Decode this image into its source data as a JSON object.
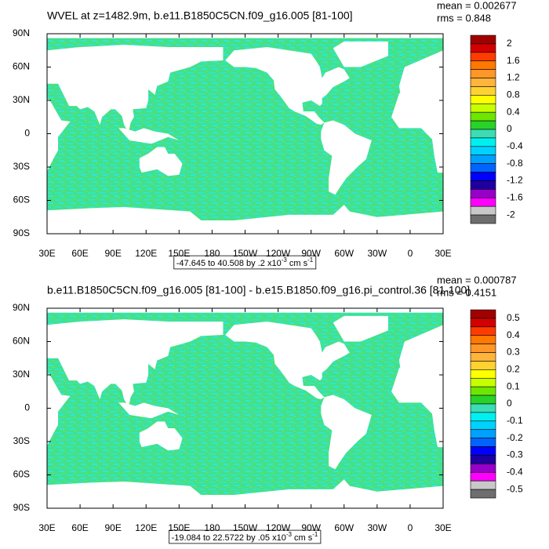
{
  "chart_data": [
    {
      "type": "map",
      "title": "WVEL at z=1482.9m, b.e11.B1850C5CN.f09_g16.005 [81-100]",
      "mean_label": "mean = 0.002677",
      "rms_label": "rms = 0.848",
      "xlim": [
        30,
        390
      ],
      "xticks": [
        {
          "value": 30,
          "label": "30E"
        },
        {
          "value": 60,
          "label": "60E"
        },
        {
          "value": 90,
          "label": "90E"
        },
        {
          "value": 120,
          "label": "120E"
        },
        {
          "value": 150,
          "label": "150E"
        },
        {
          "value": 180,
          "label": "180"
        },
        {
          "value": 210,
          "label": "150W"
        },
        {
          "value": 240,
          "label": "120W"
        },
        {
          "value": 270,
          "label": "90W"
        },
        {
          "value": 300,
          "label": "60W"
        },
        {
          "value": 330,
          "label": "30W"
        },
        {
          "value": 360,
          "label": "0"
        },
        {
          "value": 390,
          "label": "30E"
        }
      ],
      "ylim": [
        -90,
        90
      ],
      "yticks": [
        {
          "value": 90,
          "label": "90N"
        },
        {
          "value": 60,
          "label": "60N"
        },
        {
          "value": 30,
          "label": "30N"
        },
        {
          "value": 0,
          "label": "0"
        },
        {
          "value": -30,
          "label": "30S"
        },
        {
          "value": -60,
          "label": "60S"
        },
        {
          "value": -90,
          "label": "90S"
        }
      ],
      "colorbar_labels": [
        2,
        1.6,
        1.2,
        0.8,
        0.4,
        0,
        -0.4,
        -0.8,
        -1.2,
        -1.6,
        -2
      ],
      "colors": [
        "#a00000",
        "#d20000",
        "#ff3c00",
        "#ff7800",
        "#ff9628",
        "#ffb43c",
        "#ffd232",
        "#ffff00",
        "#c8ff00",
        "#6ee600",
        "#28d228",
        "#3cdcb4",
        "#00f0f0",
        "#00d2ff",
        "#00a0ff",
        "#0064ff",
        "#0000ff",
        "#1e00a0",
        "#9600c8",
        "#ff00ff",
        "#c8c8c8",
        "#6e6e6e"
      ],
      "range_label": [
        "-47.645 to 40.508 by .2 x10",
        "-3",
        " cm s",
        "-1"
      ]
    },
    {
      "type": "map",
      "title": "b.e11.B1850C5CN.f09_g16.005 [81-100] - b.e15.B1850.f09_g16.pi_control.36 [81-100]",
      "mean_label": "mean = 0.000787",
      "rms_label": "rms = 0.4151",
      "xlim": [
        30,
        390
      ],
      "xticks": [
        {
          "value": 30,
          "label": "30E"
        },
        {
          "value": 60,
          "label": "60E"
        },
        {
          "value": 90,
          "label": "90E"
        },
        {
          "value": 120,
          "label": "120E"
        },
        {
          "value": 150,
          "label": "150E"
        },
        {
          "value": 180,
          "label": "180"
        },
        {
          "value": 210,
          "label": "150W"
        },
        {
          "value": 240,
          "label": "120W"
        },
        {
          "value": 270,
          "label": "90W"
        },
        {
          "value": 300,
          "label": "60W"
        },
        {
          "value": 330,
          "label": "30W"
        },
        {
          "value": 360,
          "label": "0"
        },
        {
          "value": 390,
          "label": "30E"
        }
      ],
      "ylim": [
        -90,
        90
      ],
      "yticks": [
        {
          "value": 90,
          "label": "90N"
        },
        {
          "value": 60,
          "label": "60N"
        },
        {
          "value": 30,
          "label": "30N"
        },
        {
          "value": 0,
          "label": "0"
        },
        {
          "value": -30,
          "label": "30S"
        },
        {
          "value": -60,
          "label": "60S"
        },
        {
          "value": -90,
          "label": "90S"
        }
      ],
      "colorbar_labels": [
        0.5,
        0.4,
        0.3,
        0.2,
        0.1,
        0,
        -0.1,
        -0.2,
        -0.3,
        -0.4,
        -0.5
      ],
      "colors": [
        "#a00000",
        "#d20000",
        "#ff3c00",
        "#ff7800",
        "#ff9628",
        "#ffb43c",
        "#ffd232",
        "#ffff00",
        "#c8ff00",
        "#6ee600",
        "#28d228",
        "#3cdcb4",
        "#00f0f0",
        "#00d2ff",
        "#00a0ff",
        "#0064ff",
        "#0000ff",
        "#1e00a0",
        "#9600c8",
        "#ff00ff",
        "#c8c8c8",
        "#6e6e6e"
      ],
      "range_label": [
        "-19.084 to 22.5722 by .05 x10",
        "-3",
        " cm s",
        "-1"
      ]
    }
  ]
}
